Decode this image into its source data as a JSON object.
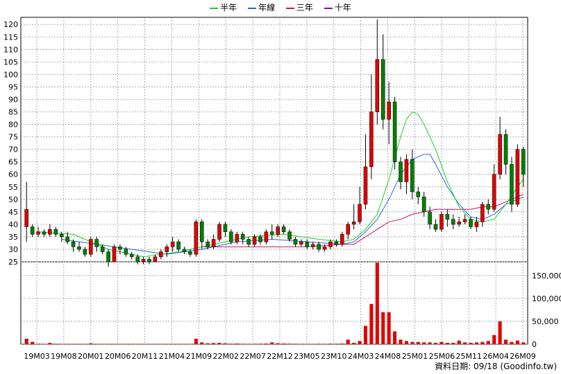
{
  "legend": [
    {
      "label": "半年",
      "color": "#22cc22"
    },
    {
      "label": "年線",
      "color": "#2266dd"
    },
    {
      "label": "三年",
      "color": "#cc1166"
    },
    {
      "label": "十年",
      "color": "#7711aa"
    }
  ],
  "footer": {
    "date_label": "資料日期: 09/18",
    "source": "(Goodinfo.tw)"
  },
  "colors": {
    "up": "#e00000",
    "down": "#008000",
    "wick": "#000000",
    "grid": "#999999",
    "volume": "#e00000"
  },
  "chart_data": [
    {
      "type": "candlestick",
      "ylim": [
        25,
        122
      ],
      "yticks": [
        25,
        30,
        35,
        40,
        45,
        50,
        55,
        60,
        65,
        70,
        75,
        80,
        85,
        90,
        95,
        100,
        105,
        110,
        115,
        120
      ],
      "xticks": [
        "19M03",
        "19M08",
        "20M01",
        "20M06",
        "20M11",
        "21M04",
        "21M09",
        "22M02",
        "22M07",
        "22M12",
        "23M05",
        "23M10",
        "24M03",
        "24M08",
        "25M01",
        "25M06",
        "25M11",
        "26M04",
        "26M09"
      ],
      "grid": true,
      "legend_position": "top",
      "candles": [
        [
          39,
          46,
          57,
          33
        ],
        [
          39,
          36,
          40,
          35
        ],
        [
          36,
          37,
          39,
          35
        ],
        [
          37,
          36,
          38,
          35
        ],
        [
          36,
          38,
          40,
          35
        ],
        [
          38,
          36,
          39,
          35
        ],
        [
          36,
          35,
          37,
          33
        ],
        [
          35,
          33,
          37,
          32
        ],
        [
          33,
          31,
          34,
          29
        ],
        [
          31,
          30,
          33,
          29
        ],
        [
          30,
          28,
          31,
          27
        ],
        [
          28,
          34,
          35,
          27
        ],
        [
          34,
          31,
          35,
          29
        ],
        [
          31,
          29,
          32,
          28
        ],
        [
          29,
          25,
          30,
          23
        ],
        [
          25,
          31,
          32,
          25
        ],
        [
          31,
          30,
          32,
          28
        ],
        [
          30,
          28,
          31,
          27
        ],
        [
          28,
          27,
          29,
          26
        ],
        [
          27,
          25,
          28,
          24
        ],
        [
          25,
          26,
          27,
          24
        ],
        [
          26,
          25,
          27,
          24
        ],
        [
          25,
          27,
          28,
          25
        ],
        [
          27,
          29,
          30,
          26
        ],
        [
          29,
          31,
          32,
          27
        ],
        [
          31,
          33,
          35,
          29
        ],
        [
          33,
          30,
          34,
          29
        ],
        [
          30,
          29,
          31,
          28
        ],
        [
          29,
          28,
          30,
          27
        ],
        [
          28,
          41,
          42,
          27
        ],
        [
          41,
          33,
          42,
          30
        ],
        [
          33,
          31,
          34,
          30
        ],
        [
          31,
          34,
          36,
          30
        ],
        [
          34,
          40,
          41,
          33
        ],
        [
          40,
          37,
          41,
          35
        ],
        [
          37,
          33,
          38,
          32
        ],
        [
          33,
          36,
          37,
          32
        ],
        [
          36,
          34,
          37,
          32
        ],
        [
          34,
          32,
          35,
          31
        ],
        [
          32,
          35,
          36,
          31
        ],
        [
          35,
          33,
          36,
          32
        ],
        [
          33,
          37,
          38,
          32
        ],
        [
          37,
          36,
          40,
          34
        ],
        [
          36,
          39,
          40,
          35
        ],
        [
          39,
          37,
          40,
          36
        ],
        [
          37,
          34,
          38,
          33
        ],
        [
          34,
          32,
          35,
          31
        ],
        [
          32,
          33,
          34,
          31
        ],
        [
          33,
          31,
          34,
          30
        ],
        [
          31,
          32,
          33,
          30
        ],
        [
          32,
          30,
          33,
          29
        ],
        [
          30,
          31,
          32,
          29
        ],
        [
          31,
          33,
          34,
          30
        ],
        [
          33,
          32,
          34,
          31
        ],
        [
          32,
          36,
          37,
          31
        ],
        [
          36,
          40,
          41,
          34
        ],
        [
          40,
          41,
          48,
          38
        ],
        [
          41,
          48,
          55,
          40
        ],
        [
          48,
          63,
          76,
          46
        ],
        [
          63,
          85,
          100,
          58
        ],
        [
          85,
          106,
          122,
          80
        ],
        [
          106,
          82,
          116,
          78
        ],
        [
          82,
          89,
          97,
          72
        ],
        [
          89,
          65,
          91,
          62
        ],
        [
          65,
          57,
          67,
          54
        ],
        [
          57,
          66,
          68,
          52
        ],
        [
          66,
          53,
          70,
          50
        ],
        [
          53,
          51,
          55,
          48
        ],
        [
          51,
          45,
          53,
          43
        ],
        [
          45,
          40,
          47,
          38
        ],
        [
          40,
          38,
          42,
          37
        ],
        [
          38,
          44,
          45,
          37
        ],
        [
          44,
          42,
          46,
          39
        ],
        [
          42,
          40,
          44,
          38
        ],
        [
          40,
          41,
          43,
          39
        ],
        [
          41,
          42,
          44,
          40
        ],
        [
          42,
          39,
          43,
          38
        ],
        [
          39,
          41,
          43,
          37
        ],
        [
          41,
          48,
          49,
          39
        ],
        [
          48,
          46,
          50,
          44
        ],
        [
          46,
          60,
          64,
          45
        ],
        [
          60,
          76,
          83,
          58
        ],
        [
          76,
          64,
          78,
          60
        ],
        [
          64,
          48,
          67,
          45
        ],
        [
          48,
          70,
          72,
          47
        ],
        [
          70,
          60,
          71,
          55
        ]
      ],
      "ma_half": [
        [
          2,
          37
        ],
        [
          8,
          36
        ],
        [
          14,
          30
        ],
        [
          20,
          27
        ],
        [
          26,
          29
        ],
        [
          32,
          32
        ],
        [
          38,
          35
        ],
        [
          44,
          36
        ],
        [
          50,
          34
        ],
        [
          54,
          33
        ],
        [
          56,
          34
        ],
        [
          58,
          38
        ],
        [
          60,
          44
        ],
        [
          62,
          58
        ],
        [
          64,
          75
        ],
        [
          65,
          82
        ],
        [
          66,
          85
        ],
        [
          67,
          84
        ],
        [
          68,
          80
        ],
        [
          70,
          70
        ],
        [
          72,
          57
        ],
        [
          74,
          47
        ],
        [
          76,
          42
        ],
        [
          78,
          41
        ],
        [
          80,
          42
        ],
        [
          82,
          48
        ],
        [
          84,
          55
        ],
        [
          85,
          58
        ]
      ],
      "ma_year": [
        [
          6,
          34
        ],
        [
          12,
          32
        ],
        [
          18,
          30
        ],
        [
          24,
          28
        ],
        [
          30,
          30
        ],
        [
          36,
          33
        ],
        [
          42,
          34
        ],
        [
          48,
          33
        ],
        [
          54,
          32
        ],
        [
          56,
          33
        ],
        [
          58,
          37
        ],
        [
          60,
          42
        ],
        [
          62,
          50
        ],
        [
          64,
          60
        ],
        [
          66,
          66
        ],
        [
          68,
          68
        ],
        [
          69,
          68
        ],
        [
          70,
          64
        ],
        [
          72,
          55
        ],
        [
          74,
          48
        ],
        [
          76,
          43
        ],
        [
          78,
          42
        ],
        [
          80,
          44
        ],
        [
          82,
          48
        ],
        [
          84,
          50
        ],
        [
          85,
          51
        ]
      ],
      "ma_3y": [
        [
          30,
          31
        ],
        [
          36,
          31
        ],
        [
          42,
          31
        ],
        [
          48,
          31
        ],
        [
          54,
          32
        ],
        [
          56,
          32
        ],
        [
          58,
          35
        ],
        [
          60,
          38
        ],
        [
          62,
          41
        ],
        [
          64,
          42
        ],
        [
          66,
          44
        ],
        [
          68,
          45
        ],
        [
          70,
          46
        ],
        [
          72,
          46
        ],
        [
          74,
          46
        ],
        [
          76,
          46
        ],
        [
          78,
          47
        ],
        [
          80,
          47
        ],
        [
          82,
          49
        ],
        [
          84,
          51
        ],
        [
          85,
          52
        ]
      ]
    },
    {
      "type": "bar",
      "ylim": [
        0,
        180000
      ],
      "yticks": [
        0,
        50000,
        100000,
        150000
      ],
      "yticklabels": [
        "0",
        "50,000",
        "100,000",
        "150,000"
      ],
      "values": [
        12000,
        5000,
        1000,
        800,
        3000,
        1000,
        500,
        500,
        400,
        300,
        400,
        2000,
        800,
        500,
        400,
        600,
        500,
        300,
        500,
        300,
        400,
        300,
        500,
        400,
        500,
        600,
        500,
        400,
        400,
        12000,
        4000,
        2000,
        2500,
        3000,
        2000,
        1000,
        1500,
        1000,
        800,
        1000,
        1200,
        1500,
        4000,
        2000,
        1500,
        1200,
        1000,
        800,
        900,
        800,
        1000,
        900,
        1200,
        1100,
        1500,
        10000,
        3000,
        7000,
        40000,
        88000,
        178000,
        70000,
        70000,
        28000,
        10000,
        7000,
        5000,
        5000,
        4000,
        4000,
        3000,
        5000,
        3000,
        3000,
        8000,
        4000,
        3000,
        4000,
        5000,
        7000,
        20000,
        50000,
        10000,
        5000,
        8000,
        4000
      ]
    }
  ]
}
